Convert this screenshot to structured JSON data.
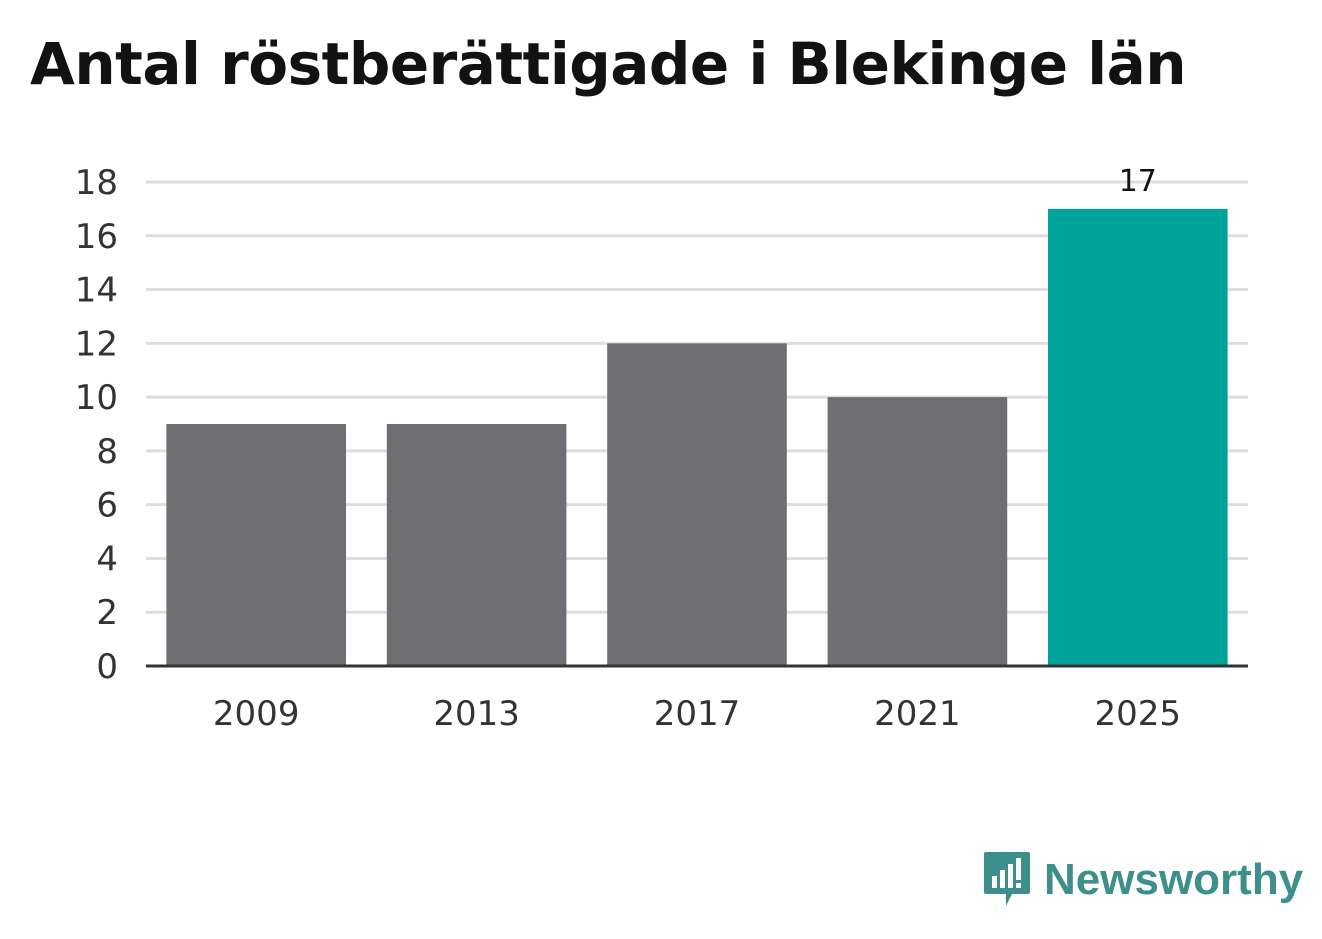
{
  "chart_data": {
    "type": "bar",
    "title": "Antal röstberättigade i Blekinge län",
    "categories": [
      "2009",
      "2013",
      "2017",
      "2021",
      "2025"
    ],
    "values": [
      9,
      9,
      12,
      10,
      17
    ],
    "ylim": [
      0,
      18
    ],
    "yticks": [
      0,
      2,
      4,
      6,
      8,
      10,
      12,
      14,
      16,
      18
    ],
    "data_labels": [
      null,
      null,
      null,
      null,
      "17"
    ],
    "bar_colors": [
      "#6f6e73",
      "#6f6e73",
      "#6f6e73",
      "#6f6e73",
      "#00a39a"
    ],
    "grid": true,
    "grid_color": "#dedede",
    "axis_color": "#333333"
  },
  "brand": {
    "name": "Newsworthy",
    "icon": "newsworthy-logo-icon",
    "color": "#3d8f8c"
  }
}
